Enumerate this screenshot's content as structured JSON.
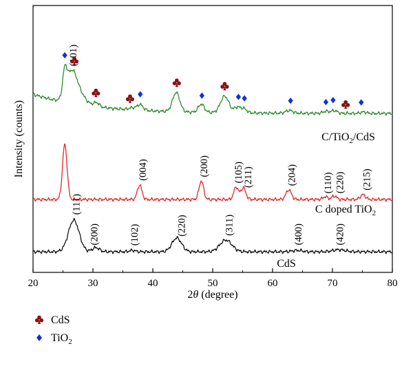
{
  "chart_data": {
    "type": "line",
    "xlabel": "2θ (degree)",
    "xlabel_prefix": "2",
    "xlabel_theta": "θ",
    "xlabel_suffix": " (degree)",
    "ylabel": "Intensity (counts)",
    "xlim": [
      20,
      80
    ],
    "x_ticks": [
      20,
      30,
      40,
      50,
      60,
      70,
      80
    ],
    "grid": false,
    "series": [
      {
        "name": "C/TiO2/CdS",
        "label_parts": [
          "C/TiO",
          "2",
          "/CdS"
        ],
        "color": "#2e8b2e",
        "baseline": 37,
        "peaks": [
          [
            25.3,
            34,
            0.35
          ],
          [
            26.5,
            47,
            0.9
          ],
          [
            28.2,
            10,
            0.9
          ],
          [
            30.6,
            6,
            0.5
          ],
          [
            36.6,
            3,
            0.6
          ],
          [
            37.9,
            8,
            0.5
          ],
          [
            43.9,
            28,
            0.6
          ],
          [
            48.1,
            12,
            0.5
          ],
          [
            52.0,
            24,
            0.7
          ],
          [
            54.1,
            8,
            0.5
          ],
          [
            55.2,
            6,
            0.5
          ],
          [
            62.8,
            4,
            0.6
          ],
          [
            68.9,
            3,
            0.5
          ],
          [
            70.3,
            4,
            0.5
          ],
          [
            75.2,
            2,
            0.5
          ]
        ],
        "tail": [
          28,
          10
        ]
      },
      {
        "name": "C doped TiO2",
        "label_parts": [
          "C doped TiO",
          "2"
        ],
        "color": "#e0282a",
        "baseline": 20,
        "peaks": [
          [
            25.3,
            80,
            0.38
          ],
          [
            37.8,
            21,
            0.38
          ],
          [
            48.1,
            27,
            0.38
          ],
          [
            53.9,
            18,
            0.38
          ],
          [
            55.1,
            17,
            0.42
          ],
          [
            62.7,
            14,
            0.45
          ],
          [
            68.8,
            4,
            0.4
          ],
          [
            70.3,
            5,
            0.4
          ],
          [
            75.1,
            7,
            0.42
          ]
        ],
        "tail": [
          0,
          10
        ]
      },
      {
        "name": "CdS",
        "label_parts": [
          "CdS"
        ],
        "color": "#111111",
        "baseline": 0,
        "peaks": [
          [
            26.8,
            46,
            0.9
          ],
          [
            30.5,
            6,
            0.6
          ],
          [
            36.6,
            2,
            0.5
          ],
          [
            44.0,
            20,
            0.8
          ],
          [
            52.2,
            17,
            1.0
          ],
          [
            64.1,
            2,
            0.8
          ],
          [
            71.1,
            3,
            1.0
          ]
        ],
        "tail": [
          0,
          10
        ]
      }
    ],
    "annotations": [
      {
        "text": "(101)",
        "x": 26.3,
        "series": "C/TiO2/CdS"
      },
      {
        "text": "(111)",
        "x": 26.8,
        "series": "CdS"
      },
      {
        "text": "(004)",
        "x": 37.9,
        "series": "C doped TiO2"
      },
      {
        "text": "(200)",
        "x": 48.1,
        "series": "C doped TiO2"
      },
      {
        "text": "(105)",
        "x": 53.9,
        "series": "C doped TiO2"
      },
      {
        "text": "(211)",
        "x": 55.5,
        "series": "C doped TiO2"
      },
      {
        "text": "(204)",
        "x": 62.8,
        "series": "C doped TiO2"
      },
      {
        "text": "(110)",
        "x": 68.8,
        "series": "C doped TiO2"
      },
      {
        "text": "(220)",
        "x": 70.8,
        "series": "C doped TiO2"
      },
      {
        "text": "(215)",
        "x": 75.3,
        "series": "C doped TiO2"
      },
      {
        "text": "(200)",
        "x": 29.8,
        "series": "CdS"
      },
      {
        "text": "(102)",
        "x": 36.5,
        "series": "CdS"
      },
      {
        "text": "(220)",
        "x": 44.4,
        "series": "CdS"
      },
      {
        "text": "(311)",
        "x": 52.3,
        "series": "CdS"
      },
      {
        "text": "(400)",
        "x": 63.9,
        "series": "CdS"
      },
      {
        "text": "(420)",
        "x": 70.8,
        "series": "CdS"
      }
    ],
    "markers": [
      {
        "type": "TiO2",
        "x": 25.3
      },
      {
        "type": "CdS",
        "x": 26.9
      },
      {
        "type": "CdS",
        "x": 30.5
      },
      {
        "type": "CdS",
        "x": 36.2
      },
      {
        "type": "TiO2",
        "x": 37.9
      },
      {
        "type": "CdS",
        "x": 44.0
      },
      {
        "type": "TiO2",
        "x": 48.2
      },
      {
        "type": "CdS",
        "x": 52.0
      },
      {
        "type": "TiO2",
        "x": 54.3
      },
      {
        "type": "TiO2",
        "x": 55.3
      },
      {
        "type": "TiO2",
        "x": 63.0
      },
      {
        "type": "TiO2",
        "x": 68.9
      },
      {
        "type": "TiO2",
        "x": 70.1
      },
      {
        "type": "CdS",
        "x": 72.2
      },
      {
        "type": "TiO2",
        "x": 74.8
      }
    ],
    "legend": {
      "placement": "bottom-left",
      "items": [
        {
          "type": "CdS",
          "label_parts": [
            "CdS"
          ],
          "color": "#8b1010"
        },
        {
          "type": "TiO2",
          "label_parts": [
            "TiO",
            "2"
          ],
          "color": "#1030e0"
        }
      ]
    }
  }
}
